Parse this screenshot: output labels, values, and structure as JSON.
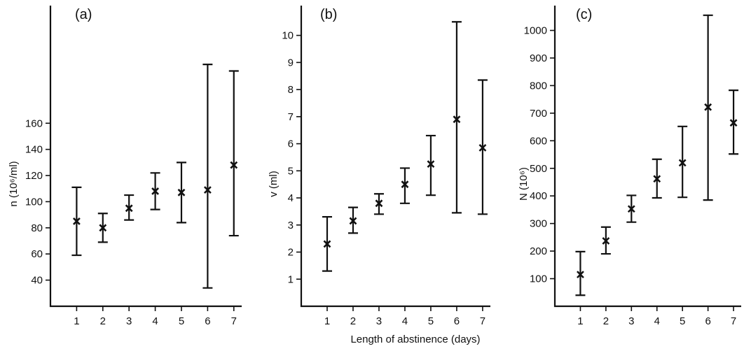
{
  "xlabel": "Length of abstinence (days)",
  "chart_data": [
    {
      "type": "scatter",
      "panel": "(a)",
      "ylabel": "n (10⁶/ml)",
      "x": [
        1,
        2,
        3,
        4,
        5,
        6,
        7
      ],
      "y": [
        85,
        80,
        95,
        108,
        107,
        109,
        128
      ],
      "y_low": [
        59,
        69,
        86,
        94,
        84,
        34,
        74
      ],
      "y_high": [
        111,
        91,
        105,
        122,
        130,
        205,
        200
      ],
      "yticks": [
        40,
        60,
        80,
        100,
        120,
        140,
        160
      ],
      "xticks": [
        1,
        2,
        3,
        4,
        5,
        6,
        7
      ],
      "xlim": [
        0,
        7.3
      ],
      "ylim": [
        20,
        250
      ],
      "grid": false,
      "marker": "x"
    },
    {
      "type": "scatter",
      "panel": "(b)",
      "ylabel": "v (ml)",
      "x": [
        1,
        2,
        3,
        4,
        5,
        6,
        7
      ],
      "y": [
        2.3,
        3.15,
        3.8,
        4.5,
        5.25,
        6.9,
        5.85
      ],
      "y_low": [
        1.3,
        2.7,
        3.4,
        3.8,
        4.1,
        3.45,
        3.4
      ],
      "y_high": [
        3.3,
        3.65,
        4.15,
        5.1,
        6.3,
        10.5,
        8.35
      ],
      "yticks": [
        1,
        2,
        3,
        4,
        5,
        6,
        7,
        8,
        9,
        10
      ],
      "xticks": [
        1,
        2,
        3,
        4,
        5,
        6,
        7
      ],
      "xlim": [
        0,
        7.3
      ],
      "ylim": [
        0,
        11.1
      ],
      "grid": false,
      "marker": "x"
    },
    {
      "type": "scatter",
      "panel": "(c)",
      "ylabel": "N (10⁶)",
      "x": [
        1,
        2,
        3,
        4,
        5,
        6,
        7
      ],
      "y": [
        115,
        237,
        353,
        462,
        520,
        722,
        665
      ],
      "y_low": [
        40,
        190,
        305,
        393,
        395,
        385,
        552
      ],
      "y_high": [
        198,
        287,
        402,
        533,
        652,
        1055,
        783
      ],
      "yticks": [
        100,
        200,
        300,
        400,
        500,
        600,
        700,
        800,
        900,
        1000
      ],
      "xticks": [
        1,
        2,
        3,
        4,
        5,
        6,
        7
      ],
      "xlim": [
        0,
        7.3
      ],
      "ylim": [
        0,
        1090
      ],
      "grid": false,
      "marker": "x"
    }
  ]
}
